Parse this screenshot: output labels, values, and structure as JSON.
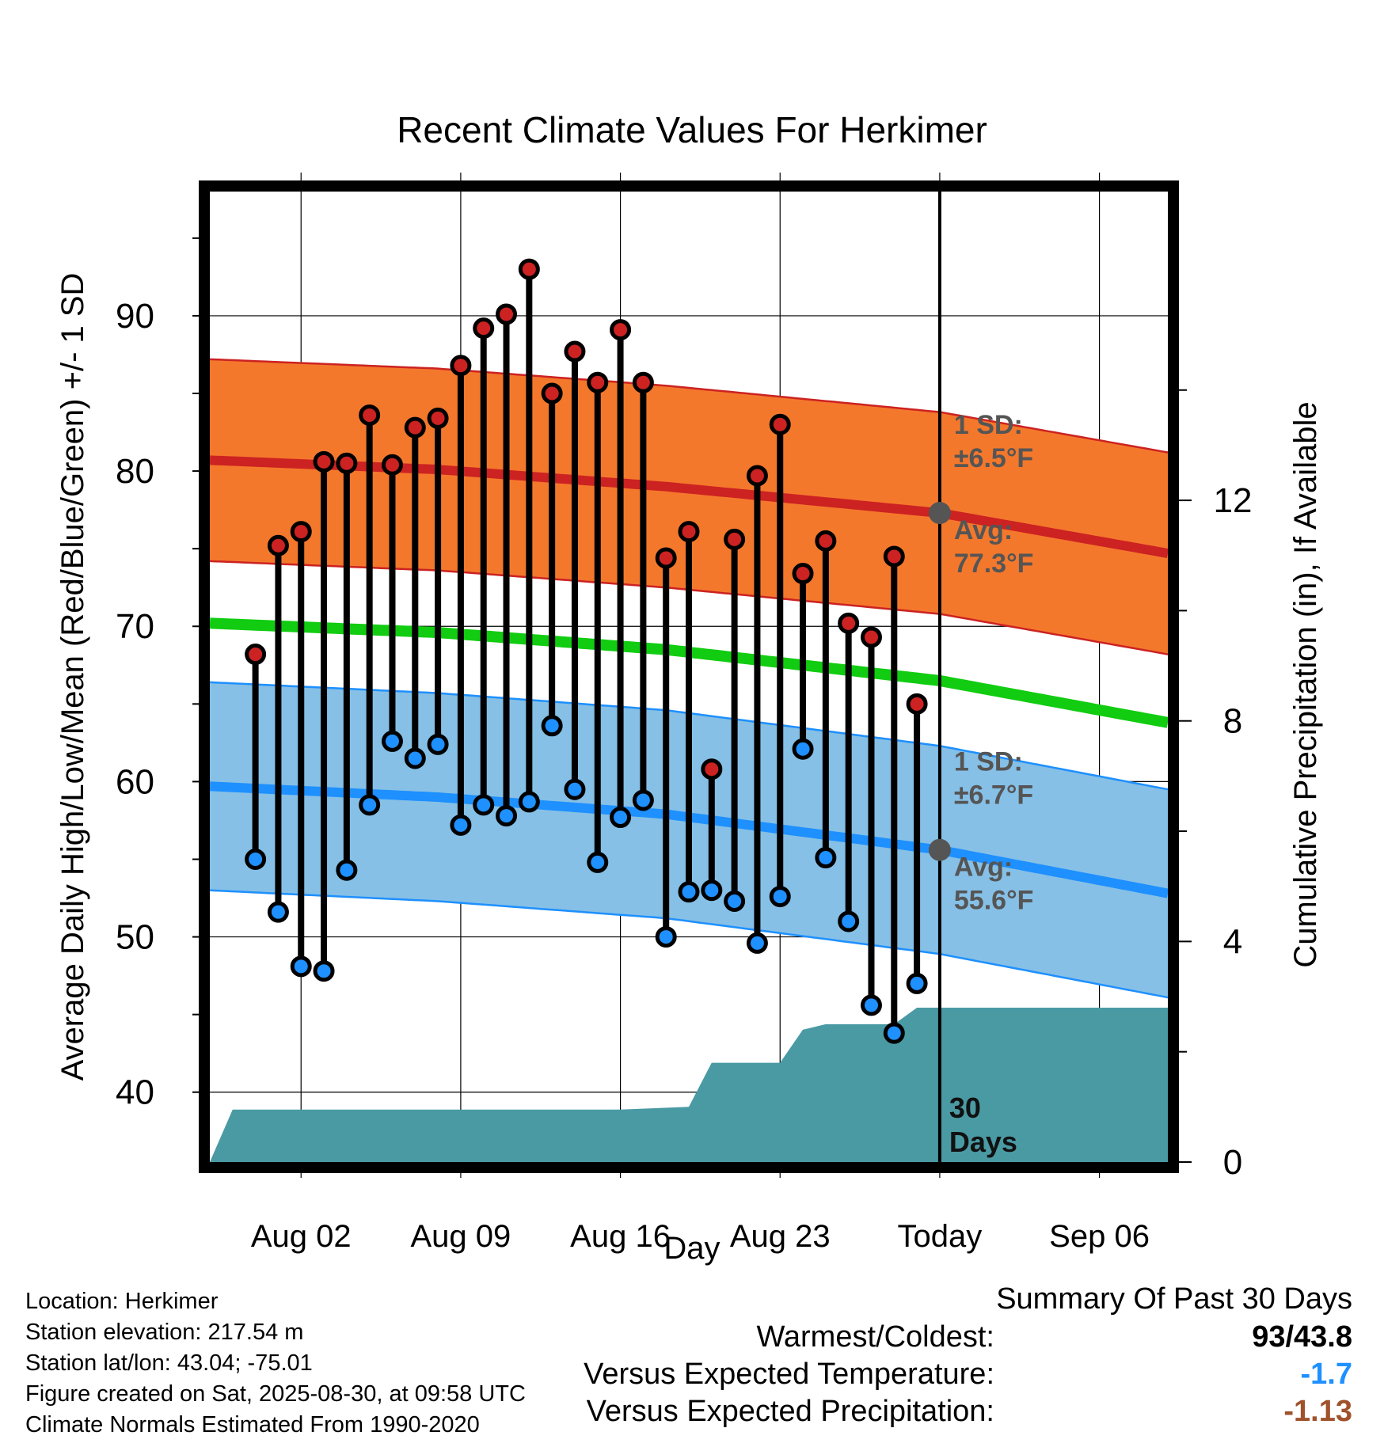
{
  "chart_data": {
    "type": "line",
    "title": "Recent Climate Values For Herkimer",
    "xlabel": "Day",
    "ylabel": "Average Daily High/Low/Mean (Red/Blue/Green) +/- 1 SD",
    "y2label": "Cumulative Precipitation (in), If Available",
    "ylim": [
      35.5,
      98
    ],
    "y2lim": [
      0,
      17.6
    ],
    "xlim": [
      "2025-07-29",
      "2025-09-09"
    ],
    "x_tick_labels": [
      {
        "date": "2025-08-02",
        "label": "Aug 02"
      },
      {
        "date": "2025-08-09",
        "label": "Aug 09"
      },
      {
        "date": "2025-08-16",
        "label": "Aug 16"
      },
      {
        "date": "2025-08-23",
        "label": "Aug 23"
      },
      {
        "date": "2025-08-30",
        "label": "Today"
      },
      {
        "date": "2025-09-06",
        "label": "Sep 06"
      }
    ],
    "y_ticks": [
      40,
      50,
      60,
      70,
      80,
      90
    ],
    "y2_ticks": [
      0,
      4,
      8,
      12
    ],
    "grid": true,
    "today": "2025-08-30",
    "period_label": "30 Days",
    "series": [
      {
        "name": "High",
        "x": [
          "2025-07-31",
          "2025-08-01",
          "2025-08-02",
          "2025-08-03",
          "2025-08-04",
          "2025-08-05",
          "2025-08-06",
          "2025-08-07",
          "2025-08-08",
          "2025-08-09",
          "2025-08-10",
          "2025-08-11",
          "2025-08-12",
          "2025-08-13",
          "2025-08-14",
          "2025-08-15",
          "2025-08-16",
          "2025-08-17",
          "2025-08-18",
          "2025-08-19",
          "2025-08-20",
          "2025-08-21",
          "2025-08-22",
          "2025-08-23",
          "2025-08-24",
          "2025-08-25",
          "2025-08-26",
          "2025-08-27",
          "2025-08-28",
          "2025-08-29"
        ],
        "values": [
          68.2,
          75.2,
          76.1,
          80.6,
          80.5,
          83.6,
          80.4,
          82.8,
          83.4,
          86.8,
          89.2,
          90.1,
          93.0,
          85.0,
          87.7,
          85.7,
          89.1,
          85.7,
          74.4,
          76.1,
          60.8,
          75.6,
          79.7,
          83.0,
          73.4,
          75.5,
          70.2,
          69.3,
          74.5,
          65.0
        ],
        "color": "#cc2222"
      },
      {
        "name": "Low",
        "x": [
          "2025-07-31",
          "2025-08-01",
          "2025-08-02",
          "2025-08-03",
          "2025-08-04",
          "2025-08-05",
          "2025-08-06",
          "2025-08-07",
          "2025-08-08",
          "2025-08-09",
          "2025-08-10",
          "2025-08-11",
          "2025-08-12",
          "2025-08-13",
          "2025-08-14",
          "2025-08-15",
          "2025-08-16",
          "2025-08-17",
          "2025-08-18",
          "2025-08-19",
          "2025-08-20",
          "2025-08-21",
          "2025-08-22",
          "2025-08-23",
          "2025-08-24",
          "2025-08-25",
          "2025-08-26",
          "2025-08-27",
          "2025-08-28",
          "2025-08-29"
        ],
        "values": [
          55.0,
          51.6,
          48.1,
          47.8,
          54.3,
          58.5,
          62.6,
          61.5,
          62.4,
          57.2,
          58.5,
          57.8,
          58.7,
          63.6,
          59.5,
          54.8,
          57.7,
          58.8,
          50.0,
          52.9,
          53.0,
          52.3,
          49.6,
          52.6,
          62.1,
          55.1,
          51.0,
          45.6,
          43.8,
          47.0
        ],
        "color": "#1e90ff"
      },
      {
        "name": "Normal High",
        "x": [
          "2025-07-29",
          "2025-08-08",
          "2025-08-18",
          "2025-08-30",
          "2025-09-09"
        ],
        "values": [
          80.7,
          80.1,
          79.0,
          77.3,
          74.7
        ],
        "sd": 6.5,
        "color": "#cc2222",
        "band_color": "#f4782c"
      },
      {
        "name": "Normal Low",
        "x": [
          "2025-07-29",
          "2025-08-08",
          "2025-08-18",
          "2025-08-30",
          "2025-09-09"
        ],
        "values": [
          59.7,
          59.0,
          57.9,
          55.6,
          52.8
        ],
        "sd": 6.7,
        "color": "#1e90ff",
        "band_color": "#86c0e6"
      },
      {
        "name": "Normal Mean",
        "x": [
          "2025-07-29",
          "2025-08-08",
          "2025-08-18",
          "2025-08-30",
          "2025-09-09"
        ],
        "values": [
          70.2,
          69.6,
          68.5,
          66.5,
          63.8
        ],
        "color": "#11cc11"
      },
      {
        "name": "Cumulative Precipitation",
        "axis": "y2",
        "x": [
          "2025-07-29",
          "2025-07-30",
          "2025-08-16",
          "2025-08-19",
          "2025-08-20",
          "2025-08-23",
          "2025-08-24",
          "2025-08-25",
          "2025-08-28",
          "2025-08-29",
          "2025-09-09"
        ],
        "values": [
          0,
          0.95,
          0.95,
          1.0,
          1.8,
          1.8,
          2.4,
          2.5,
          2.5,
          2.8,
          2.8
        ],
        "color": "#4a9aa4"
      }
    ],
    "annotations": [
      {
        "sd_line1": "1 SD:",
        "sd_line2": "±6.5°F",
        "avg_line1": "Avg:",
        "avg_line2": "77.3°F",
        "avg_value": 77.3
      },
      {
        "sd_line1": "1 SD:",
        "sd_line2": "±6.7°F",
        "avg_line1": "Avg:",
        "avg_line2": "55.6°F",
        "avg_value": 55.6
      }
    ]
  },
  "meta": {
    "location": "Location: Herkimer",
    "elevation": "Station elevation: 217.54 m",
    "latlon": "Station lat/lon: 43.04; -75.01",
    "created": "Figure created on Sat, 2025-08-30, at 09:58 UTC",
    "normals": "Climate Normals Estimated From 1990-2020"
  },
  "summary": {
    "title": "Summary Of Past 30 Days",
    "rows": [
      {
        "label": "Warmest/Coldest:",
        "value": "93/43.8",
        "color": "#000000"
      },
      {
        "label": "Versus Expected Temperature:",
        "value": "-1.7",
        "color": "#1e90ff"
      },
      {
        "label": "Versus Expected Precipitation:",
        "value": "-1.13",
        "color": "#a0522d"
      }
    ]
  }
}
